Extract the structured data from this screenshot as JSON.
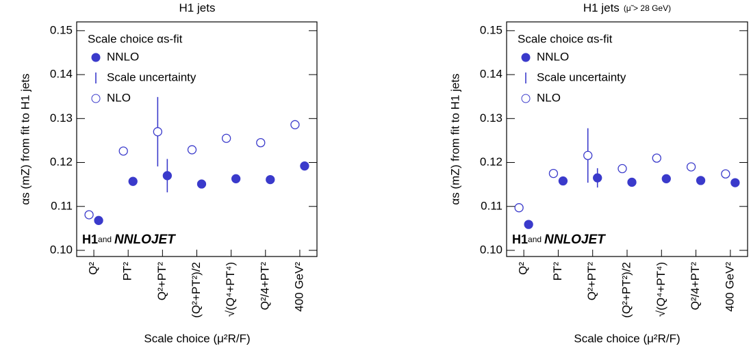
{
  "chart_data": [
    {
      "type": "errorbar",
      "title": "H1 jets",
      "y_label": "αs (mZ) from fit to H1 jets",
      "x_label": "Scale choice (μ²R/F)",
      "categories": [
        "Q²",
        "PT²",
        "Q²+PT²",
        "(Q²+PT²)/2",
        "√(Q⁴+PT⁴)",
        "Q²/4+PT²",
        "400 GeV²"
      ],
      "legend_title": "Scale choice αs-fit",
      "error_label": "Scale uncertainty",
      "series": [
        {
          "name": "NNLO",
          "color": "#3a3acb",
          "filled": true,
          "values": [
            0.1068,
            0.1157,
            0.117,
            0.1151,
            0.1163,
            0.1161,
            0.1192
          ],
          "errors": [
            null,
            null,
            0.0038,
            null,
            null,
            null,
            null
          ]
        },
        {
          "name": "NLO",
          "color": "#3a3acb",
          "filled": false,
          "values": [
            0.1081,
            0.1226,
            0.127,
            0.1229,
            0.1255,
            0.1245,
            0.1286
          ],
          "errors": [
            null,
            null,
            0.0079,
            null,
            null,
            null,
            null
          ]
        }
      ],
      "ylim": [
        0.0986,
        0.152
      ],
      "yticks": [
        {
          "value": 0.1,
          "label": "0.10"
        },
        0.11,
        0.12,
        0.13,
        0.14,
        0.15
      ],
      "annotation": [
        "H1",
        "and",
        "NNLOJET"
      ]
    },
    {
      "type": "errorbar",
      "title": "H1 jets",
      "subtitle": "(μ̃ > 28 GeV)",
      "y_label": "αs (mZ) from fit to H1 jets",
      "x_label": "Scale choice (μ²R/F)",
      "categories": [
        "Q²",
        "PT²",
        "Q²+PT²",
        "(Q²+PT²)/2",
        "√(Q⁴+PT⁴)",
        "Q²/4+PT²",
        "400 GeV²"
      ],
      "legend_title": "Scale choice αs-fit",
      "error_label": "Scale uncertainty",
      "series": [
        {
          "name": "NNLO",
          "color": "#3a3acb",
          "filled": true,
          "values": [
            0.1059,
            0.1158,
            0.1165,
            0.1155,
            0.1163,
            0.1159,
            0.1154
          ],
          "errors": [
            null,
            null,
            0.0022,
            null,
            null,
            null,
            null
          ]
        },
        {
          "name": "NLO",
          "color": "#3a3acb",
          "filled": false,
          "values": [
            0.1097,
            0.1175,
            0.1216,
            0.1186,
            0.121,
            0.119,
            0.1174
          ],
          "errors": [
            null,
            null,
            0.0062,
            null,
            null,
            null,
            null
          ]
        }
      ],
      "ylim": [
        0.0986,
        0.152
      ],
      "yticks": [
        {
          "value": 0.1,
          "label": "0.10"
        },
        0.11,
        0.12,
        0.13,
        0.14,
        0.15
      ],
      "annotation": [
        "H1",
        "and",
        "NNLOJET"
      ]
    }
  ]
}
